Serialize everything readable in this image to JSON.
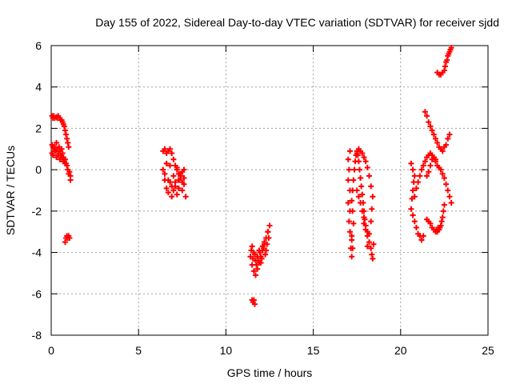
{
  "chart_data": {
    "type": "scatter",
    "title": "Day 155 of 2022, Sidereal Day-to-day VTEC variation (SDTVAR) for receiver sjdd",
    "xlabel": "GPS time / hours",
    "ylabel": "SDTVAR / TECUs",
    "xlim": [
      0,
      25
    ],
    "ylim": [
      -8,
      6
    ],
    "xticks": [
      0,
      5,
      10,
      15,
      20,
      25
    ],
    "yticks": [
      -8,
      -6,
      -4,
      -2,
      0,
      2,
      4,
      6
    ],
    "grid": true,
    "marker": "+",
    "colors": {
      "series": "#ff0000",
      "grid": "#a0a0a0",
      "axis": "#000000"
    },
    "series": [
      {
        "name": "sjdd",
        "segments": [
          {
            "x": [
              0.05,
              0.1,
              0.15,
              0.2,
              0.3,
              0.35,
              0.4,
              0.5,
              0.55,
              0.6,
              0.65,
              0.7,
              0.75,
              0.8,
              0.85,
              0.9,
              0.95,
              1.0
            ],
            "y": [
              2.6,
              2.5,
              2.6,
              2.5,
              2.55,
              2.5,
              2.6,
              2.5,
              2.4,
              2.4,
              2.3,
              2.2,
              2.1,
              1.9,
              1.7,
              1.5,
              1.3,
              1.1
            ]
          },
          {
            "x": [
              0.05,
              0.1,
              0.15,
              0.2,
              0.25,
              0.3,
              0.35,
              0.4,
              0.45,
              0.5,
              0.55,
              0.6,
              0.65,
              0.7,
              0.75,
              0.8,
              0.85,
              0.9,
              0.95,
              1.0,
              1.05,
              1.1,
              1.1
            ],
            "y": [
              1.2,
              1.1,
              1.0,
              1.1,
              0.9,
              1.3,
              1.0,
              0.8,
              1.1,
              0.9,
              0.7,
              1.0,
              0.8,
              0.6,
              0.4,
              0.5,
              0.3,
              0.2,
              0.0,
              -0.2,
              -0.1,
              -0.3,
              -0.5
            ]
          },
          {
            "x": [
              0.05,
              0.1,
              0.2,
              0.3,
              0.4,
              0.5,
              0.6,
              0.7,
              0.8
            ],
            "y": [
              0.8,
              0.7,
              0.9,
              0.6,
              0.7,
              0.5,
              0.6,
              0.4,
              0.3
            ]
          },
          {
            "x": [
              0.8,
              0.85,
              0.9,
              0.95,
              1.0,
              1.05
            ],
            "y": [
              -3.5,
              -3.3,
              -3.2,
              -3.3,
              -3.2,
              -3.3
            ]
          },
          {
            "x": [
              6.4,
              6.5,
              6.6,
              6.7,
              6.8,
              6.9,
              7.0,
              7.1,
              7.2,
              7.3,
              7.4,
              7.5,
              7.6
            ],
            "y": [
              0.9,
              1.0,
              0.8,
              0.9,
              1.0,
              0.8,
              0.5,
              0.2,
              0.0,
              -0.2,
              -0.3,
              -0.1,
              0.0
            ]
          },
          {
            "x": [
              6.4,
              6.5,
              6.6,
              6.7,
              6.8,
              6.9,
              7.0,
              7.1,
              7.2,
              7.3,
              7.4,
              7.5,
              7.6,
              7.7
            ],
            "y": [
              0.0,
              -0.2,
              0.3,
              -0.5,
              0.2,
              -0.8,
              -0.3,
              -0.6,
              0.1,
              -0.9,
              -0.4,
              -1.0,
              -0.7,
              -1.3
            ]
          },
          {
            "x": [
              6.5,
              6.6,
              6.7,
              6.8,
              6.9,
              7.0,
              7.1,
              7.2,
              7.3,
              7.4,
              7.5,
              7.6
            ],
            "y": [
              -0.5,
              -0.9,
              -1.1,
              -0.6,
              -1.3,
              -1.0,
              -0.8,
              -1.2,
              -0.5,
              -0.2,
              -0.6,
              -0.4
            ]
          },
          {
            "x": [
              11.5,
              11.55,
              11.6,
              11.65
            ],
            "y": [
              -6.3,
              -6.4,
              -6.3,
              -6.5
            ]
          },
          {
            "x": [
              11.4,
              11.5,
              11.6,
              11.7,
              11.8,
              11.9,
              12.0,
              12.1,
              12.2,
              12.3,
              12.4,
              12.5
            ],
            "y": [
              -4.2,
              -4.6,
              -4.9,
              -5.1,
              -4.8,
              -4.5,
              -4.2,
              -3.9,
              -3.6,
              -3.3,
              -3.0,
              -2.7
            ]
          },
          {
            "x": [
              11.45,
              11.55,
              11.65,
              11.75,
              11.85,
              11.95,
              12.05,
              12.15,
              12.25,
              12.35,
              12.45
            ],
            "y": [
              -3.9,
              -4.3,
              -4.1,
              -4.6,
              -4.4,
              -4.0,
              -4.3,
              -3.8,
              -4.1,
              -3.6,
              -3.3
            ]
          },
          {
            "x": [
              11.5,
              11.6,
              11.7,
              11.8,
              11.9,
              12.0,
              12.1,
              12.2,
              12.3,
              12.4
            ],
            "y": [
              -3.7,
              -4.0,
              -4.4,
              -4.2,
              -3.9,
              -4.5,
              -3.7,
              -3.5,
              -3.9,
              -3.0
            ]
          },
          {
            "x": [
              17.1,
              17.0,
              17.05,
              17.0,
              17.1,
              17.0,
              17.1,
              17.05,
              17.1,
              17.2,
              17.15,
              17.2,
              17.25,
              17.2,
              17.3,
              17.25
            ],
            "y": [
              0.9,
              0.5,
              0.0,
              -0.5,
              -1.0,
              -1.6,
              -2.0,
              -2.5,
              -3.0,
              -3.4,
              -3.8,
              -4.2,
              -3.8,
              -3.2,
              -2.6,
              -2.0
            ]
          },
          {
            "x": [
              17.2,
              17.25,
              17.3,
              17.35,
              17.4,
              17.45,
              17.5,
              17.55,
              17.6,
              17.65,
              17.7,
              17.75,
              17.8,
              17.85,
              17.9,
              17.95
            ],
            "y": [
              -1.5,
              -1.0,
              -0.5,
              0.0,
              0.4,
              0.7,
              0.9,
              0.7,
              0.4,
              0.0,
              -0.4,
              -0.8,
              -1.2,
              -1.6,
              -2.0,
              -2.4
            ]
          },
          {
            "x": [
              17.5,
              17.6,
              17.7,
              17.8,
              17.9,
              18.0,
              18.1,
              18.2,
              18.3,
              18.4,
              18.35,
              18.3,
              18.2,
              18.1
            ],
            "y": [
              0.8,
              1.0,
              0.9,
              0.8,
              0.6,
              0.4,
              0.1,
              -0.3,
              -0.8,
              -1.3,
              -1.9,
              -2.5,
              -3.1,
              -3.7
            ]
          },
          {
            "x": [
              17.9,
              18.0,
              18.1,
              18.2,
              18.3,
              18.35,
              18.4,
              18.45
            ],
            "y": [
              -2.6,
              -2.9,
              -3.2,
              -3.5,
              -3.8,
              -4.1,
              -4.3,
              -3.6
            ]
          },
          {
            "x": [
              17.5,
              17.6,
              17.7,
              17.8,
              17.9,
              18.0,
              18.1
            ],
            "y": [
              -1.0,
              -1.3,
              -1.6,
              -2.0,
              -2.3,
              -2.7,
              -3.0
            ]
          },
          {
            "x": [
              20.6,
              20.7,
              20.8,
              20.75,
              20.7,
              20.65,
              20.6,
              20.7,
              20.8,
              20.9,
              21.0,
              21.1,
              21.2,
              21.3
            ],
            "y": [
              0.3,
              0.0,
              -0.3,
              -0.6,
              -1.0,
              -1.4,
              -1.9,
              -2.2,
              -2.5,
              -2.8,
              -3.1,
              -3.2,
              -3.4,
              -3.2
            ]
          },
          {
            "x": [
              20.8,
              20.9,
              21.0,
              21.1,
              21.2,
              21.3,
              21.4,
              21.5,
              21.6,
              21.7,
              21.8,
              21.9,
              22.0
            ],
            "y": [
              -1.3,
              -0.9,
              -0.6,
              -0.3,
              0.0,
              0.2,
              0.4,
              0.6,
              0.7,
              0.8,
              0.7,
              0.6,
              0.5
            ]
          },
          {
            "x": [
              21.5,
              21.6,
              21.7,
              21.8,
              21.9,
              22.0,
              22.1,
              22.2,
              22.3,
              22.4,
              22.5,
              22.6,
              22.7,
              22.8,
              22.9
            ],
            "y": [
              -0.3,
              -0.1,
              0.2,
              0.5,
              0.6,
              0.4,
              0.2,
              0.1,
              0.0,
              -0.2,
              -0.4,
              -0.7,
              -1.0,
              -1.3,
              -1.6
            ]
          },
          {
            "x": [
              22.5,
              22.45,
              22.4,
              22.35,
              22.3,
              22.25,
              22.2,
              22.15,
              22.1,
              22.05,
              22.0,
              21.9,
              21.8,
              21.7,
              21.6,
              21.5
            ],
            "y": [
              -1.7,
              -2.0,
              -2.3,
              -2.5,
              -2.7,
              -2.8,
              -2.9,
              -2.8,
              -3.0,
              -2.9,
              -3.0,
              -2.9,
              -2.8,
              -2.6,
              -2.5,
              -2.4
            ]
          },
          {
            "x": [
              21.4,
              21.5,
              21.6,
              21.7,
              21.8,
              21.9,
              22.0,
              22.1,
              22.2,
              22.3,
              22.4,
              22.5,
              22.6,
              22.7,
              22.8
            ],
            "y": [
              2.8,
              2.6,
              2.3,
              2.1,
              1.9,
              1.7,
              1.5,
              1.3,
              1.1,
              1.0,
              0.9,
              1.1,
              1.2,
              1.5,
              1.7
            ]
          },
          {
            "x": [
              22.1,
              22.2,
              22.3,
              22.4,
              22.5,
              22.55,
              22.6,
              22.65,
              22.7,
              22.75,
              22.8,
              22.85,
              22.9
            ],
            "y": [
              4.7,
              4.6,
              4.6,
              4.7,
              4.8,
              5.0,
              5.2,
              5.3,
              5.5,
              5.6,
              5.7,
              5.8,
              5.9
            ]
          }
        ]
      }
    ]
  }
}
